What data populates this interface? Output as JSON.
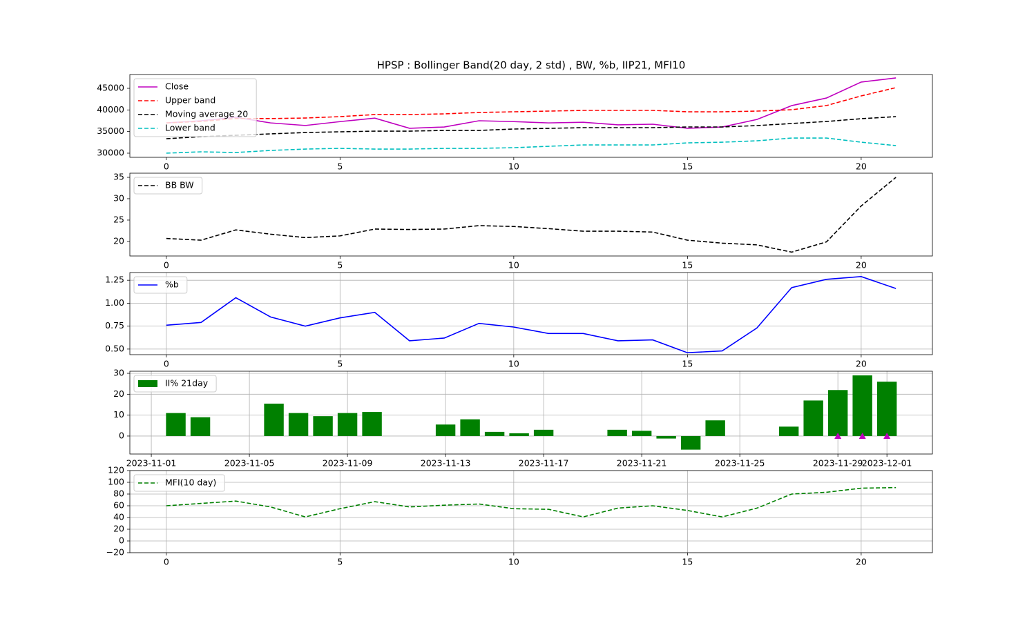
{
  "chart_data": [
    {
      "type": "line",
      "title": "HPSP : Bollinger Band(20 day, 2 std) , BW, %b, IIP21, MFI10",
      "xlim": [
        -1.05,
        22.05
      ],
      "xticks": [
        0,
        5,
        10,
        15,
        20
      ],
      "ylim": [
        29040,
        48190
      ],
      "yticks": [
        30000,
        35000,
        40000,
        45000
      ],
      "grid": false,
      "legend": "upper left",
      "series": [
        {
          "name": "Close",
          "color": "#bf00bf",
          "dashed": false,
          "values": [
            37000,
            37500,
            38300,
            37000,
            36400,
            37300,
            38100,
            35750,
            36050,
            37500,
            37300,
            37000,
            37150,
            36550,
            36700,
            35750,
            36050,
            37800,
            41000,
            42750,
            46450,
            47400
          ]
        },
        {
          "name": "Upper band",
          "color": "#ff0000",
          "dashed": true,
          "values": [
            37000,
            37350,
            38000,
            38000,
            38130,
            38450,
            38930,
            38930,
            39090,
            39410,
            39570,
            39730,
            39890,
            39890,
            39890,
            39570,
            39570,
            39730,
            40050,
            41010,
            43240,
            45160
          ]
        },
        {
          "name": "Moving average 20",
          "color": "#000000",
          "dashed": true,
          "values": [
            33340,
            33820,
            34140,
            34460,
            34780,
            34940,
            35100,
            35100,
            35260,
            35260,
            35580,
            35740,
            35900,
            35900,
            35900,
            36060,
            36060,
            36380,
            36860,
            37330,
            37970,
            38450
          ]
        },
        {
          "name": "Lower band",
          "color": "#00bfbf",
          "dashed": true,
          "values": [
            30000,
            30310,
            30150,
            30630,
            30950,
            31110,
            30950,
            30950,
            31110,
            31110,
            31270,
            31590,
            31900,
            31900,
            31900,
            32380,
            32540,
            32860,
            33500,
            33500,
            32540,
            31750
          ]
        }
      ]
    },
    {
      "type": "line",
      "xlim": [
        -1.05,
        22.05
      ],
      "xticks": [
        0,
        5,
        10,
        15,
        20
      ],
      "ylim": [
        16.6,
        35.97
      ],
      "yticks": [
        20,
        25,
        30,
        35
      ],
      "grid": false,
      "legend": "upper left",
      "series": [
        {
          "name": "BB BW",
          "color": "#000000",
          "dashed": true,
          "values": [
            20.7,
            20.3,
            22.7,
            21.7,
            20.9,
            21.3,
            22.9,
            22.8,
            22.9,
            23.7,
            23.5,
            23.0,
            22.4,
            22.4,
            22.2,
            20.3,
            19.6,
            19.2,
            17.5,
            19.9,
            28.3,
            35.0
          ]
        }
      ]
    },
    {
      "type": "line",
      "xlim": [
        -1.05,
        22.05
      ],
      "xticks": [
        0,
        5,
        10,
        15,
        20
      ],
      "ylim": [
        0.439,
        1.334
      ],
      "yticks": [
        {
          "value": 0.5,
          "label": "0.50"
        },
        0.75,
        {
          "value": 1,
          "label": "1.00"
        },
        1.25
      ],
      "grid": true,
      "legend": "upper left",
      "series": [
        {
          "name": "%b",
          "color": "#0000ff",
          "dashed": false,
          "values": [
            0.76,
            0.79,
            1.06,
            0.85,
            0.75,
            0.84,
            0.9,
            0.59,
            0.62,
            0.78,
            0.74,
            0.67,
            0.67,
            0.59,
            0.6,
            0.46,
            0.48,
            0.73,
            1.17,
            1.26,
            1.29,
            1.16
          ]
        }
      ]
    },
    {
      "type": "bar",
      "xlim": [
        "2023-10-31T03:00:00Z",
        "2023-12-02T20:30:00Z"
      ],
      "xticks": [
        "2023-11-01",
        "2023-11-05",
        "2023-11-09",
        "2023-11-13",
        "2023-11-17",
        "2023-11-21",
        "2023-11-25",
        "2023-11-29",
        "2023-12-01"
      ],
      "ylim": [
        -8.6,
        31
      ],
      "yticks": [
        0,
        10,
        20,
        30
      ],
      "grid": true,
      "legend": "upper left",
      "x": [
        "2023-11-02",
        "2023-11-03",
        "2023-11-06",
        "2023-11-07",
        "2023-11-08",
        "2023-11-09",
        "2023-11-10",
        "2023-11-13",
        "2023-11-14",
        "2023-11-15",
        "2023-11-16",
        "2023-11-17",
        "2023-11-20",
        "2023-11-21",
        "2023-11-22",
        "2023-11-23",
        "2023-11-24",
        "2023-11-27",
        "2023-11-28",
        "2023-11-29",
        "2023-11-30",
        "2023-12-01"
      ],
      "series": [
        {
          "name": "II% 21day",
          "color": "#008000",
          "values": [
            11,
            9,
            15.5,
            11,
            9.5,
            11,
            11.5,
            5.5,
            8,
            2,
            1.3,
            3,
            3,
            2.5,
            -1.2,
            -6.5,
            7.5,
            4.5,
            17,
            22,
            29,
            26
          ]
        }
      ],
      "markers": {
        "color": "#bf00bf",
        "x": [
          "2023-11-29",
          "2023-11-30",
          "2023-12-01"
        ],
        "values": [
          0,
          0,
          0
        ]
      }
    },
    {
      "type": "line",
      "xlim": [
        -1.05,
        22.05
      ],
      "xticks": [
        0,
        5,
        10,
        15,
        20
      ],
      "ylim": [
        -20,
        120
      ],
      "yticks": [
        {
          "value": -20,
          "label": "−20"
        },
        0,
        20,
        40,
        60,
        80,
        100,
        120
      ],
      "grid": true,
      "legend": "upper left",
      "series": [
        {
          "name": "MFI(10 day)",
          "color": "#008000",
          "dashed": true,
          "values": [
            60,
            64,
            68,
            58,
            41,
            55,
            67,
            58,
            61,
            63,
            55,
            54,
            41,
            56,
            60,
            52,
            41,
            56,
            80,
            83,
            90,
            91
          ]
        }
      ]
    }
  ]
}
